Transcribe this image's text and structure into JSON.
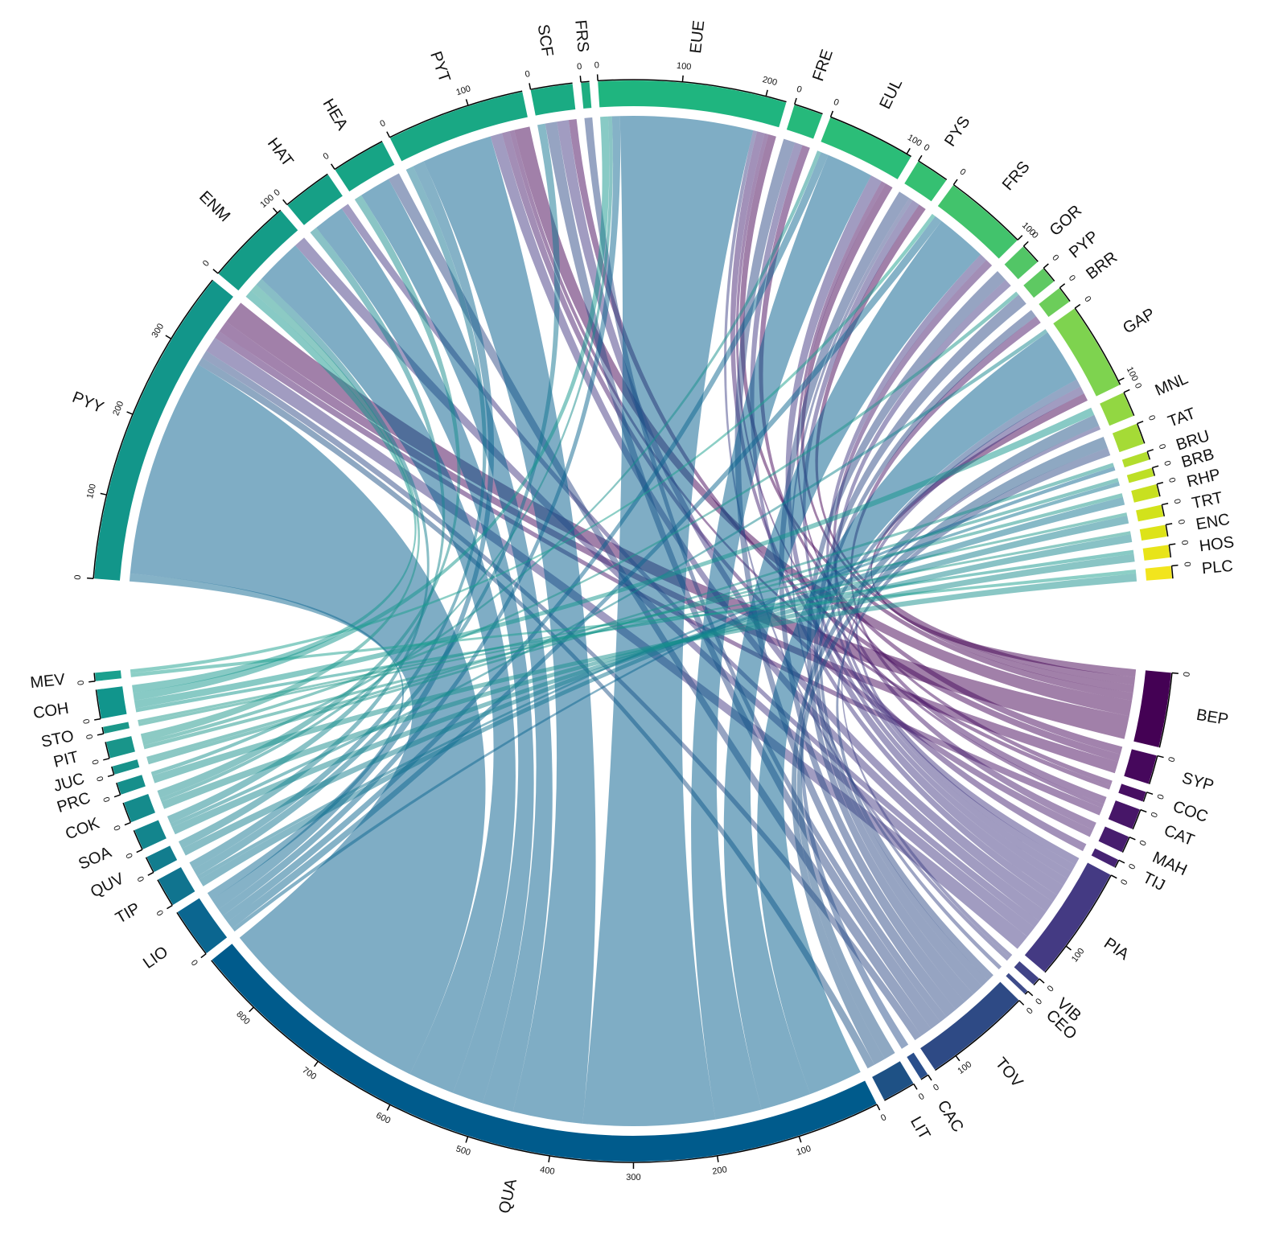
{
  "chart_data": {
    "type": "chord",
    "categories": [
      "PYY",
      "ENM",
      "HAT",
      "HEA",
      "PYT",
      "SCF",
      "FRS",
      "EUE",
      "FRE",
      "EUL",
      "PYS",
      "FRS",
      "GOR",
      "PYP",
      "BRR",
      "GAP",
      "MNL",
      "TAT",
      "BRU",
      "BRB",
      "RHP",
      "TRT",
      "ENC",
      "HOS",
      "PLC"
    ],
    "category_colors": [
      "#12968a",
      "#149c87",
      "#16a086",
      "#17a485",
      "#19a884",
      "#1aab83",
      "#1fae81",
      "#1fb57f",
      "#26b97b",
      "#2bbd78",
      "#35c072",
      "#42c36c",
      "#52c666",
      "#5ec962",
      "#6ccd5a",
      "#7ed34f",
      "#92d742",
      "#a5db36",
      "#b2dd2d",
      "#bddf26",
      "#c8e020",
      "#d2e21b",
      "#dde318",
      "#e8e419",
      "#f2e51d"
    ],
    "category_ticks": [
      [
        0,
        100,
        200,
        300
      ],
      [
        0,
        100
      ],
      [
        0
      ],
      [
        0
      ],
      [
        0,
        100
      ],
      [
        0
      ],
      [
        0
      ],
      [
        0,
        100,
        200
      ],
      [
        0
      ],
      [
        0,
        100
      ],
      [
        0
      ],
      [
        0,
        100
      ],
      [
        0
      ],
      [
        0
      ],
      [
        0
      ],
      [
        0,
        100
      ],
      [
        0
      ],
      [
        0
      ],
      [
        0
      ],
      [
        0
      ],
      [
        0
      ],
      [
        0
      ],
      [
        0
      ],
      [
        0
      ],
      [
        0
      ]
    ],
    "series": [
      {
        "name": "BEP",
        "color": "#440154",
        "ticks": [
          0
        ],
        "values": [
          30,
          null,
          null,
          null,
          20,
          null,
          null,
          10,
          null,
          10,
          10,
          null,
          null,
          null,
          null,
          10,
          null,
          null,
          null,
          null,
          null,
          null,
          null,
          null,
          null
        ]
      },
      {
        "name": "SYP",
        "color": "#46085c",
        "ticks": [
          0
        ],
        "values": [
          15,
          null,
          null,
          null,
          null,
          10,
          null,
          null,
          10,
          null,
          null,
          null,
          null,
          null,
          null,
          null,
          null,
          null,
          null,
          null,
          null,
          null,
          null,
          null,
          null
        ]
      },
      {
        "name": "COC",
        "color": "#470f62",
        "ticks": [
          0
        ],
        "values": [
          null,
          null,
          null,
          null,
          6,
          null,
          null,
          null,
          null,
          6,
          null,
          null,
          null,
          null,
          null,
          null,
          null,
          null,
          null,
          null,
          null,
          null,
          null,
          null,
          null
        ]
      },
      {
        "name": "CAT",
        "color": "#471668",
        "ticks": [
          0
        ],
        "values": [
          10,
          null,
          null,
          null,
          null,
          null,
          null,
          5,
          null,
          null,
          null,
          null,
          null,
          null,
          10,
          null,
          null,
          null,
          null,
          null,
          null,
          null,
          null,
          null,
          null
        ]
      },
      {
        "name": "MAH",
        "color": "#471d6e",
        "ticks": [
          0
        ],
        "values": [
          null,
          null,
          null,
          null,
          10,
          null,
          null,
          null,
          null,
          null,
          null,
          10,
          null,
          null,
          null,
          null,
          null,
          null,
          null,
          null,
          null,
          null,
          null,
          null,
          null
        ]
      },
      {
        "name": "TIJ",
        "color": "#462373",
        "ticks": [
          0
        ],
        "values": [
          null,
          null,
          null,
          null,
          null,
          null,
          null,
          10,
          null,
          null,
          null,
          null,
          null,
          null,
          null,
          null,
          null,
          null,
          null,
          null,
          null,
          null,
          null,
          null,
          null
        ]
      },
      {
        "name": "PIA",
        "color": "#443a83",
        "ticks": [
          0,
          100
        ],
        "values": [
          20,
          15,
          10,
          null,
          15,
          15,
          null,
          null,
          10,
          15,
          10,
          10,
          10,
          null,
          null,
          10,
          null,
          null,
          null,
          null,
          null,
          null,
          null,
          null,
          null
        ]
      },
      {
        "name": "VIB",
        "color": "#414487",
        "ticks": [
          0
        ],
        "values": [
          null,
          null,
          null,
          null,
          null,
          null,
          null,
          5,
          null,
          null,
          null,
          null,
          null,
          null,
          null,
          null,
          5,
          null,
          null,
          null,
          null,
          null,
          null,
          null,
          null
        ]
      },
      {
        "name": "CEO",
        "color": "#3e4c8a",
        "ticks": [
          0
        ],
        "values": [
          null,
          null,
          null,
          null,
          null,
          null,
          null,
          null,
          null,
          null,
          5,
          null,
          null,
          null,
          null,
          null,
          null,
          null,
          null,
          null,
          null,
          null,
          null,
          null,
          null
        ]
      },
      {
        "name": "TOV",
        "color": "#2e4a85",
        "ticks": [
          0,
          100
        ],
        "values": [
          10,
          null,
          null,
          15,
          null,
          15,
          10,
          null,
          15,
          null,
          15,
          null,
          15,
          15,
          10,
          null,
          null,
          10,
          null,
          null,
          null,
          null,
          null,
          null,
          null
        ]
      },
      {
        "name": "CAC",
        "color": "#2a4f8c",
        "ticks": [
          0
        ],
        "values": [
          null,
          null,
          null,
          null,
          null,
          null,
          null,
          null,
          null,
          null,
          null,
          null,
          null,
          null,
          null,
          10,
          null,
          null,
          null,
          null,
          null,
          null,
          null,
          null,
          null
        ]
      },
      {
        "name": "LIT",
        "color": "#1e5185",
        "ticks": [
          0
        ],
        "values": [
          10,
          null,
          null,
          null,
          null,
          null,
          null,
          null,
          null,
          null,
          null,
          null,
          null,
          null,
          null,
          null,
          15,
          15,
          null,
          null,
          null,
          null,
          null,
          null,
          null
        ]
      },
      {
        "name": "QUA",
        "color": "#005b8c",
        "ticks": [
          0,
          100,
          200,
          300,
          400,
          500,
          600,
          700,
          800
        ],
        "values": [
          280,
          60,
          40,
          40,
          90,
          null,
          null,
          170,
          null,
          60,
          null,
          65,
          null,
          null,
          null,
          70,
          null,
          null,
          null,
          null,
          null,
          null,
          null,
          null,
          null
        ]
      },
      {
        "name": "LIO",
        "color": "#0b6690",
        "ticks": [
          0
        ],
        "values": [
          10,
          null,
          null,
          null,
          15,
          null,
          null,
          10,
          null,
          10,
          null,
          10,
          null,
          null,
          null,
          null,
          null,
          null,
          5,
          null,
          null,
          null,
          null,
          null,
          null
        ]
      },
      {
        "name": "TIP",
        "color": "#10748f",
        "ticks": [
          0
        ],
        "values": [
          null,
          null,
          null,
          null,
          10,
          10,
          null,
          null,
          null,
          null,
          null,
          null,
          null,
          null,
          null,
          null,
          null,
          null,
          null,
          5,
          10,
          null,
          null,
          null,
          null
        ]
      },
      {
        "name": "QUV",
        "color": "#127d8e",
        "ticks": [
          0
        ],
        "values": [
          null,
          10,
          null,
          null,
          null,
          null,
          null,
          null,
          null,
          null,
          null,
          null,
          null,
          null,
          null,
          null,
          null,
          null,
          null,
          null,
          null,
          10,
          null,
          null,
          null
        ]
      },
      {
        "name": "SOA",
        "color": "#13858d",
        "ticks": [
          0
        ],
        "values": [
          null,
          null,
          10,
          null,
          null,
          null,
          null,
          null,
          null,
          null,
          null,
          null,
          null,
          null,
          null,
          5,
          null,
          null,
          null,
          null,
          null,
          null,
          10,
          null,
          null
        ]
      },
      {
        "name": "COK",
        "color": "#158b8c",
        "ticks": [
          0
        ],
        "values": [
          null,
          null,
          null,
          10,
          null,
          null,
          null,
          5,
          null,
          null,
          null,
          null,
          null,
          null,
          null,
          null,
          null,
          null,
          null,
          null,
          null,
          null,
          null,
          10,
          null
        ]
      },
      {
        "name": "PRC",
        "color": "#168f8b",
        "ticks": [
          0
        ],
        "values": [
          null,
          null,
          null,
          null,
          null,
          null,
          null,
          null,
          null,
          5,
          null,
          null,
          null,
          null,
          null,
          null,
          null,
          null,
          null,
          null,
          null,
          null,
          null,
          null,
          10
        ]
      },
      {
        "name": "JUC",
        "color": "#18928a",
        "ticks": [
          0
        ],
        "values": [
          null,
          null,
          null,
          null,
          null,
          null,
          null,
          null,
          null,
          null,
          null,
          null,
          null,
          null,
          null,
          null,
          null,
          null,
          5,
          5,
          null,
          null,
          null,
          null,
          null
        ]
      },
      {
        "name": "PIT",
        "color": "#19958a",
        "ticks": [
          0
        ],
        "values": [
          null,
          10,
          null,
          null,
          null,
          null,
          null,
          null,
          null,
          null,
          null,
          null,
          null,
          5,
          null,
          null,
          null,
          null,
          null,
          null,
          5,
          null,
          null,
          null,
          null
        ]
      },
      {
        "name": "STO",
        "color": "#1b9889",
        "ticks": [
          0
        ],
        "values": [
          null,
          null,
          null,
          null,
          null,
          null,
          null,
          null,
          null,
          null,
          null,
          null,
          null,
          null,
          null,
          null,
          null,
          null,
          null,
          null,
          null,
          4,
          4,
          null,
          null
        ]
      },
      {
        "name": "COH",
        "color": "#11958c",
        "ticks": [
          0
        ],
        "values": [
          null,
          10,
          null,
          null,
          null,
          null,
          null,
          10,
          null,
          null,
          null,
          null,
          null,
          null,
          null,
          null,
          10,
          null,
          null,
          null,
          null,
          null,
          null,
          5,
          null
        ]
      },
      {
        "name": "MEV",
        "color": "#1aa08e",
        "ticks": [
          0
        ],
        "values": [
          null,
          null,
          null,
          null,
          null,
          null,
          null,
          null,
          null,
          null,
          null,
          5,
          null,
          null,
          null,
          null,
          null,
          null,
          null,
          null,
          null,
          null,
          null,
          null,
          5
        ]
      }
    ]
  }
}
